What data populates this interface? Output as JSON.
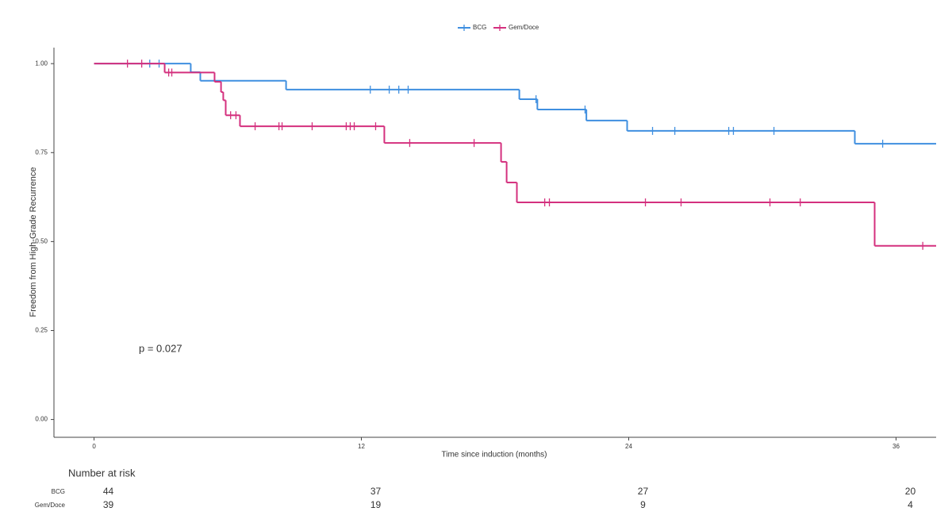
{
  "chart_data": {
    "type": "kaplan-meier",
    "xlabel": "Time since induction (months)",
    "ylabel": "Freedom from High-Grade Recurrence",
    "annotation": "p = 0.027",
    "legend": "top",
    "xlim": [
      -1.8,
      37.8
    ],
    "ylim": [
      -0.05,
      1.045
    ],
    "xticks": [
      0,
      12,
      24,
      36
    ],
    "yticks": [
      {
        "value": 0,
        "label": "0.00"
      },
      {
        "value": 0.25,
        "label": "0.25"
      },
      {
        "value": 0.5,
        "label": "0.50"
      },
      {
        "value": 0.75,
        "label": "0.75"
      },
      {
        "value": 1,
        "label": "1.00"
      }
    ],
    "series": [
      {
        "name": "BCG",
        "color": "#3f8fe0",
        "x": [
          0,
          4.34,
          4.77,
          8.62,
          19.09,
          19.9,
          22.1,
          23.93,
          34.15
        ],
        "values": [
          1,
          0.976,
          0.952,
          0.927,
          0.9,
          0.871,
          0.84,
          0.811,
          0.775
        ],
        "censored": {
          "x": [
            2.5,
            2.92,
            12.4,
            13.25,
            13.68,
            14.1,
            19.84,
            22.04,
            25.07,
            26.07,
            28.49,
            28.7,
            30.52,
            35.4
          ],
          "values": [
            1,
            1,
            0.927,
            0.927,
            0.927,
            0.927,
            0.9,
            0.871,
            0.811,
            0.811,
            0.811,
            0.811,
            0.811,
            0.775
          ]
        }
      },
      {
        "name": "Gem/Doce",
        "color": "#d4307e",
        "x": [
          0,
          3.17,
          5.41,
          5.7,
          5.8,
          5.91,
          6.55,
          13.03,
          18.27,
          18.52,
          18.98,
          35.04
        ],
        "values": [
          1,
          0.975,
          0.949,
          0.92,
          0.897,
          0.855,
          0.824,
          0.777,
          0.724,
          0.666,
          0.61,
          0.488
        ],
        "censored": {
          "x": [
            1.5,
            2.14,
            3.35,
            3.49,
            6.13,
            6.37,
            7.23,
            8.3,
            8.44,
            9.79,
            11.32,
            11.5,
            11.68,
            12.64,
            14.17,
            17.06,
            20.23,
            20.44,
            24.75,
            26.35,
            30.34,
            31.7,
            37.2
          ],
          "values": [
            1,
            1,
            0.975,
            0.975,
            0.855,
            0.855,
            0.824,
            0.824,
            0.824,
            0.824,
            0.824,
            0.824,
            0.824,
            0.824,
            0.777,
            0.777,
            0.61,
            0.61,
            0.61,
            0.61,
            0.61,
            0.61,
            0.488
          ]
        }
      }
    ],
    "risk_table": {
      "title": "Number at risk",
      "times": [
        0,
        12,
        24,
        36
      ],
      "rows": [
        {
          "name": "BCG",
          "values": [
            44,
            37,
            27,
            20
          ]
        },
        {
          "name": "Gem/Doce",
          "values": [
            39,
            19,
            9,
            4
          ]
        }
      ]
    }
  }
}
